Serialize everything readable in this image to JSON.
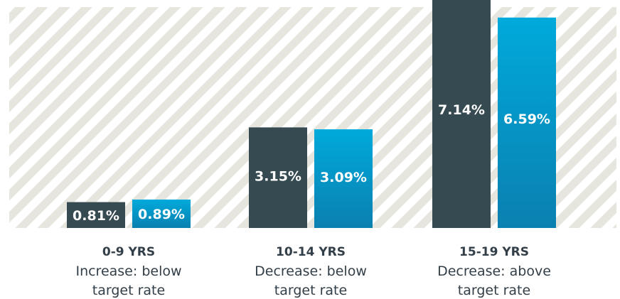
{
  "chart_data": {
    "type": "bar",
    "categories": [
      {
        "title": "0-9 YRS",
        "lines": [
          "Increase: below",
          "target rate"
        ]
      },
      {
        "title": "10-14 YRS",
        "lines": [
          "Decrease: below",
          "target rate"
        ]
      },
      {
        "title": "15-19 YRS",
        "lines": [
          "Decrease: above",
          "target rate"
        ]
      }
    ],
    "series": [
      {
        "values": [
          0.81,
          3.15,
          7.14
        ],
        "labels": [
          "0.81%",
          "3.15%",
          "7.14%"
        ],
        "color": "#364a52"
      },
      {
        "values": [
          0.89,
          3.09,
          6.59
        ],
        "labels": [
          "0.89%",
          "3.09%",
          "6.59%"
        ],
        "color_top": "#00aadb",
        "color_bottom": "#0a80b0"
      }
    ],
    "ylim": [
      0,
      7.14
    ],
    "grid": false,
    "legend": "none",
    "background": {
      "stripe_color": "#e6e6df",
      "base_color": "#ffffff"
    }
  }
}
